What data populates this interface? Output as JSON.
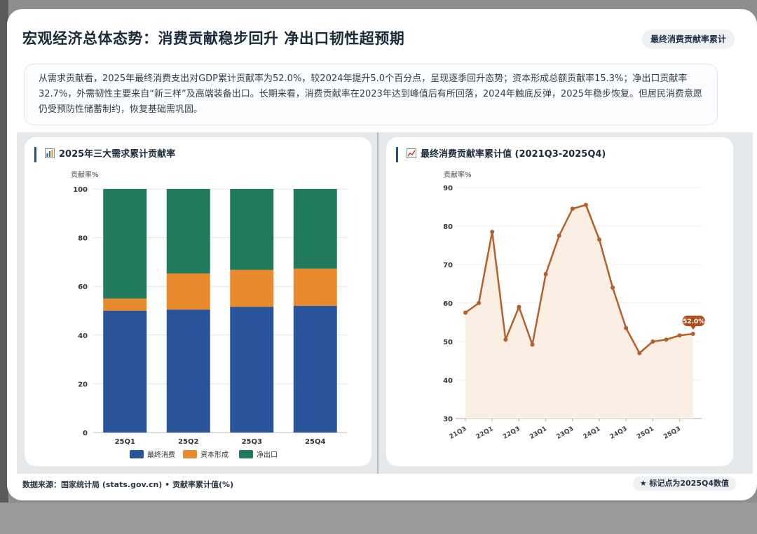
{
  "header": {
    "title": "宏观经济总体态势：消费贡献稳步回升 净出口韧性超预期",
    "badge": "最终消费贡献率累计"
  },
  "summary": "从需求贡献看，2025年最终消费支出对GDP累计贡献率为52.0%，较2024年提升5.0个百分点，呈现逐季回升态势；资本形成总额贡献率15.3%；净出口贡献率32.7%，外需韧性主要来自“新三样”及高端装备出口。长期来看，消费贡献率在2023年达到峰值后有所回落，2024年触底反弹，2025年稳步恢复。但居民消费意愿仍受预防性储蓄制约，恢复基础需巩固。",
  "footer": {
    "source": "数据来源：国家统计局 (stats.gov.cn) • 贡献率累计值(%)",
    "badge": "★ 标记点为2025Q4数值"
  },
  "colors": {
    "consumption": "#2a5499",
    "capital": "#e88b2e",
    "net_export": "#217a5c",
    "line": "#b5602a",
    "line_fill": "#fbeee3"
  },
  "chart_data": [
    {
      "type": "bar",
      "stacked": true,
      "title": "2025年三大需求累计贡献率",
      "icon": "bar-chart-icon",
      "ylabel": "贡献率%",
      "ylim": [
        0,
        100
      ],
      "yticks": [
        0,
        20,
        40,
        60,
        80,
        100
      ],
      "categories": [
        "25Q1",
        "25Q2",
        "25Q3",
        "25Q4"
      ],
      "series": [
        {
          "name": "最终消费",
          "values": [
            50.0,
            50.5,
            51.6,
            52.0
          ]
        },
        {
          "name": "资本形成",
          "values": [
            5.0,
            14.8,
            15.2,
            15.3
          ]
        },
        {
          "name": "净出口",
          "values": [
            45.0,
            34.7,
            33.2,
            32.7
          ]
        }
      ],
      "legend": "bottom",
      "grid": true
    },
    {
      "type": "line",
      "title": "最终消费贡献率累计值 (2021Q3-2025Q4)",
      "icon": "line-chart-icon",
      "ylabel": "贡献率%",
      "ylim": [
        30,
        90
      ],
      "yticks": [
        30,
        40,
        50,
        60,
        70,
        80,
        90
      ],
      "x": [
        "21Q3",
        "21Q4",
        "22Q1",
        "22Q2",
        "22Q3",
        "22Q4",
        "23Q1",
        "23Q2",
        "23Q3",
        "23Q4",
        "24Q1",
        "24Q2",
        "24Q3",
        "24Q4",
        "25Q1",
        "25Q2",
        "25Q3",
        "25Q4"
      ],
      "xtick_labels": [
        "21Q3",
        "22Q1",
        "22Q3",
        "23Q1",
        "23Q3",
        "24Q1",
        "24Q3",
        "25Q1",
        "25Q3"
      ],
      "values": [
        57.5,
        60.0,
        78.5,
        50.5,
        59.0,
        49.2,
        67.5,
        77.5,
        84.5,
        85.5,
        76.5,
        64.0,
        53.5,
        47.0,
        50.0,
        50.5,
        51.6,
        52.0
      ],
      "annotation": {
        "x": "25Q4",
        "label": "52.0%"
      },
      "area_fill": true,
      "grid": true
    }
  ]
}
